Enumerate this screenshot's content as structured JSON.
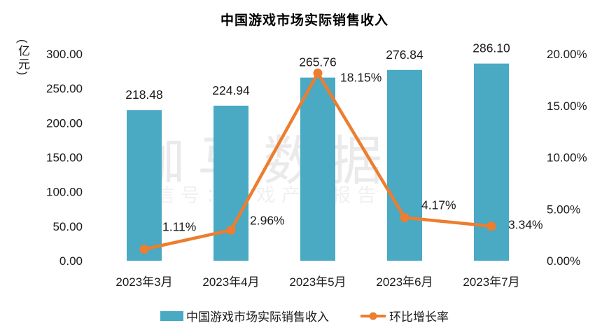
{
  "title": "中国游戏市场实际销售收入",
  "y_axis_unit": "(亿元)",
  "watermark": {
    "line1": "伽马数据",
    "line2": "微信号：游戏产业报告"
  },
  "chart_data": {
    "type": "combo-bar-line",
    "title": "中国游戏市场实际销售收入",
    "categories": [
      "2023年3月",
      "2023年4月",
      "2023年5月",
      "2023年6月",
      "2023年7月"
    ],
    "series": [
      {
        "name": "中国游戏市场实际销售收入",
        "type": "bar",
        "axis": "left",
        "unit": "亿元",
        "values": [
          218.48,
          224.94,
          265.76,
          276.84,
          286.1
        ],
        "labels": [
          "218.48",
          "224.94",
          "265.76",
          "276.84",
          "286.10"
        ],
        "color": "#4AA9C3"
      },
      {
        "name": "环比增长率",
        "type": "line",
        "axis": "right",
        "unit": "%",
        "values": [
          1.11,
          2.96,
          18.15,
          4.17,
          3.34
        ],
        "labels": [
          "1.11%",
          "2.96%",
          "18.15%",
          "4.17%",
          "3.34%"
        ],
        "color": "#ED7D2F"
      }
    ],
    "left_axis": {
      "min": 0,
      "max": 300,
      "tick_step": 50,
      "tick_labels": [
        "0.00",
        "50.00",
        "100.00",
        "150.00",
        "200.00",
        "250.00",
        "300.00"
      ]
    },
    "right_axis": {
      "min": 0,
      "max": 20,
      "tick_step": 5,
      "tick_labels": [
        "0.00%",
        "5.00%",
        "10.00%",
        "15.00%",
        "20.00%"
      ]
    },
    "grid": false,
    "legend_position": "bottom"
  },
  "text_color": "#1a1a1a"
}
